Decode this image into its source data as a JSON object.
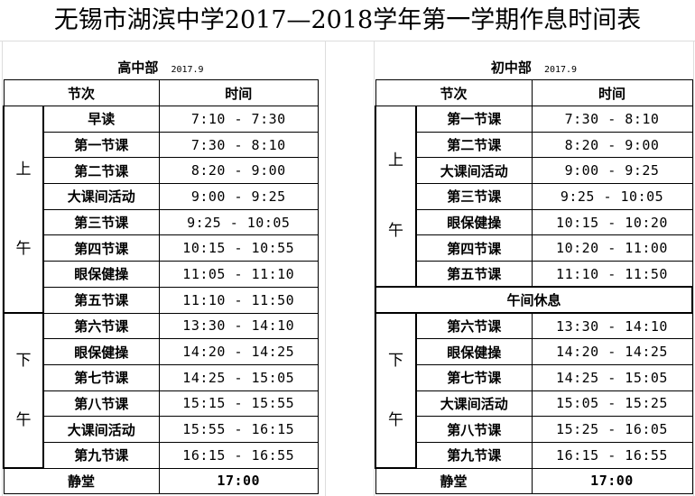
{
  "title": "无锡市湖滨中学2017—2018学年第一学期作息时间表",
  "senior": {
    "label": "高中部",
    "date": "2017.9",
    "head_session": "节次",
    "head_time": "时间",
    "morning_label": [
      "上",
      "午"
    ],
    "afternoon_label": [
      "下",
      "午"
    ],
    "morning": [
      {
        "name": "早读",
        "time": "7:10 - 7:30"
      },
      {
        "name": "第一节课",
        "time": "7:30 - 8:10"
      },
      {
        "name": "第二节课",
        "time": "8:20 - 9:00"
      },
      {
        "name": "大课间活动",
        "time": "9:00 - 9:25"
      },
      {
        "name": "第三节课",
        "time": "9:25 - 10:05"
      },
      {
        "name": "第四节课",
        "time": "10:15 - 10:55"
      },
      {
        "name": "眼保健操",
        "time": "11:05 - 11:10"
      },
      {
        "name": "第五节课",
        "time": "11:10 - 11:50"
      }
    ],
    "afternoon": [
      {
        "name": "第六节课",
        "time": "13:30 - 14:10"
      },
      {
        "name": "眼保健操",
        "time": "14:20 - 14:25"
      },
      {
        "name": "第七节课",
        "time": "14:25 - 15:05"
      },
      {
        "name": "第八节课",
        "time": "15:15 - 15:55"
      },
      {
        "name": "大课间活动",
        "time": "15:55 - 16:15"
      },
      {
        "name": "第九节课",
        "time": "16:15 - 16:55"
      }
    ],
    "final": {
      "name": "静堂",
      "time": "17:00"
    }
  },
  "junior": {
    "label": "初中部",
    "date": "2017.9",
    "head_session": "节次",
    "head_time": "时间",
    "morning_label": [
      "上",
      "午"
    ],
    "afternoon_label": [
      "下",
      "午"
    ],
    "noon_break": "午间休息",
    "morning": [
      {
        "name": "第一节课",
        "time": "7:30 - 8:10"
      },
      {
        "name": "第二节课",
        "time": "8:20 - 9:00"
      },
      {
        "name": "大课间活动",
        "time": "9:00 - 9:25"
      },
      {
        "name": "第三节课",
        "time": "9:25 - 10:05"
      },
      {
        "name": "眼保健操",
        "time": "10:15 - 10:20"
      },
      {
        "name": "第四节课",
        "time": "10:20 - 11:00"
      },
      {
        "name": "第五节课",
        "time": "11:10 - 11:50"
      }
    ],
    "afternoon": [
      {
        "name": "第六节课",
        "time": "13:30 - 14:10"
      },
      {
        "name": "眼保健操",
        "time": "14:20 - 14:25"
      },
      {
        "name": "第七节课",
        "time": "14:25 - 15:05"
      },
      {
        "name": "大课间活动",
        "time": "15:05 - 15:25"
      },
      {
        "name": "第八节课",
        "time": "15:25 - 16:05"
      },
      {
        "name": "第九节课",
        "time": "16:15 - 16:55"
      }
    ],
    "final": {
      "name": "静堂",
      "time": "17:00"
    }
  }
}
